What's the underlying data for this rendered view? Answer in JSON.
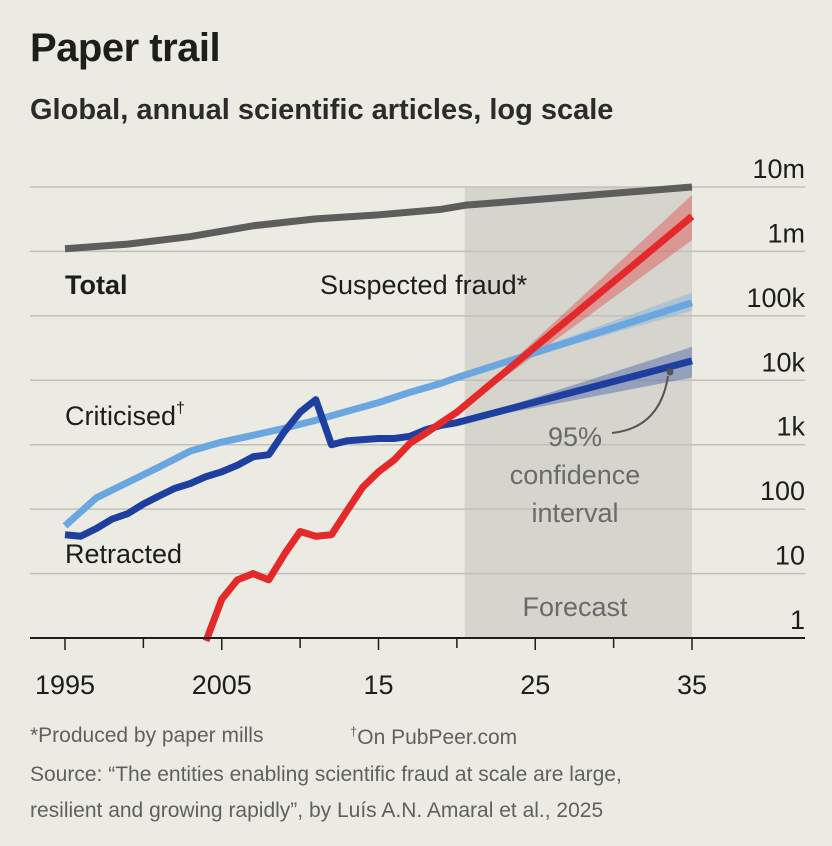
{
  "title": "Paper trail",
  "subtitle": "Global, annual scientific articles, log scale",
  "footnotes": {
    "fraud_note": "*Produced by paper mills",
    "criticised_mark": "†",
    "criticised_note": "On PubPeer.com",
    "source_line1": "Source: “The entities enabling scientific fraud at scale are large,",
    "source_line2": "resilient and growing rapidly”, by Luís A.N. Amaral et al., 2025"
  },
  "chart_data": {
    "type": "line",
    "y_scale": "log",
    "x_range": [
      1995,
      2035
    ],
    "y_range": [
      1,
      10000000
    ],
    "forecast_start": 2020.5,
    "forecast_label": "Forecast",
    "x_ticks": [
      {
        "value": 1995,
        "label": "1995"
      },
      {
        "value": 2005,
        "label": "2005"
      },
      {
        "value": 2015,
        "label": "15"
      },
      {
        "value": 2025,
        "label": "25"
      },
      {
        "value": 2035,
        "label": "35"
      }
    ],
    "x_minor_ticks": [
      2000,
      2010,
      2020,
      2030
    ],
    "y_ticks": [
      {
        "value": 1,
        "label": "1"
      },
      {
        "value": 10,
        "label": "10"
      },
      {
        "value": 100,
        "label": "100"
      },
      {
        "value": 1000,
        "label": "1k"
      },
      {
        "value": 10000,
        "label": "10k"
      },
      {
        "value": 100000,
        "label": "100k"
      },
      {
        "value": 1000000,
        "label": "1m"
      },
      {
        "value": 10000000,
        "label": "10m"
      }
    ],
    "series": [
      {
        "name": "Total",
        "label": "Total",
        "color": "#5d5d5d",
        "points": [
          [
            1995,
            1100000
          ],
          [
            1999,
            1300000
          ],
          [
            2003,
            1700000
          ],
          [
            2007,
            2500000
          ],
          [
            2011,
            3200000
          ],
          [
            2015,
            3700000
          ],
          [
            2019,
            4500000
          ],
          [
            2020.5,
            5200000
          ],
          [
            2035,
            10000000
          ]
        ]
      },
      {
        "name": "Suspected fraud",
        "label": "Suspected fraud*",
        "color": "#e3292a",
        "points": [
          [
            2004,
            0.9
          ],
          [
            2005,
            4
          ],
          [
            2006,
            8
          ],
          [
            2007,
            10
          ],
          [
            2008,
            8
          ],
          [
            2009,
            20
          ],
          [
            2010,
            45
          ],
          [
            2011,
            38
          ],
          [
            2012,
            40
          ],
          [
            2013,
            95
          ],
          [
            2014,
            220
          ],
          [
            2015,
            380
          ],
          [
            2016,
            580
          ],
          [
            2017,
            1050
          ],
          [
            2018,
            1500
          ],
          [
            2019,
            2200
          ],
          [
            2020,
            3200
          ],
          [
            2035,
            3500000
          ]
        ],
        "ci_band": [
          [
            2020,
            3200,
            3200
          ],
          [
            2035,
            1500000,
            7500000
          ]
        ]
      },
      {
        "name": "Criticised",
        "label": "Criticised",
        "label_mark": "†",
        "color": "#6aa6e0",
        "points": [
          [
            1995,
            55
          ],
          [
            1997,
            150
          ],
          [
            1999,
            260
          ],
          [
            2001,
            450
          ],
          [
            2003,
            800
          ],
          [
            2005,
            1100
          ],
          [
            2007,
            1400
          ],
          [
            2009,
            1800
          ],
          [
            2011,
            2400
          ],
          [
            2013,
            3300
          ],
          [
            2015,
            4500
          ],
          [
            2017,
            6500
          ],
          [
            2019,
            9000
          ],
          [
            2020,
            11000
          ],
          [
            2035,
            160000
          ]
        ],
        "ci_band": [
          [
            2020,
            11000,
            11000
          ],
          [
            2035,
            120000,
            230000
          ]
        ]
      },
      {
        "name": "Retracted",
        "label": "Retracted",
        "color": "#1f3fa0",
        "points": [
          [
            1995,
            40
          ],
          [
            1996,
            38
          ],
          [
            1997,
            50
          ],
          [
            1998,
            70
          ],
          [
            1999,
            85
          ],
          [
            2000,
            120
          ],
          [
            2001,
            160
          ],
          [
            2002,
            210
          ],
          [
            2003,
            250
          ],
          [
            2004,
            320
          ],
          [
            2005,
            380
          ],
          [
            2006,
            480
          ],
          [
            2007,
            650
          ],
          [
            2008,
            700
          ],
          [
            2009,
            1600
          ],
          [
            2010,
            3200
          ],
          [
            2011,
            5000
          ],
          [
            2012,
            1000
          ],
          [
            2013,
            1150
          ],
          [
            2014,
            1200
          ],
          [
            2015,
            1250
          ],
          [
            2016,
            1250
          ],
          [
            2017,
            1350
          ],
          [
            2018,
            1700
          ],
          [
            2019,
            2000
          ],
          [
            2020,
            2200
          ],
          [
            2035,
            20000
          ]
        ],
        "ci_band": [
          [
            2020,
            2200,
            2200
          ],
          [
            2035,
            11000,
            33000
          ]
        ]
      }
    ],
    "annotations": {
      "ci_lines": [
        "95%",
        "confidence",
        "interval"
      ]
    }
  }
}
